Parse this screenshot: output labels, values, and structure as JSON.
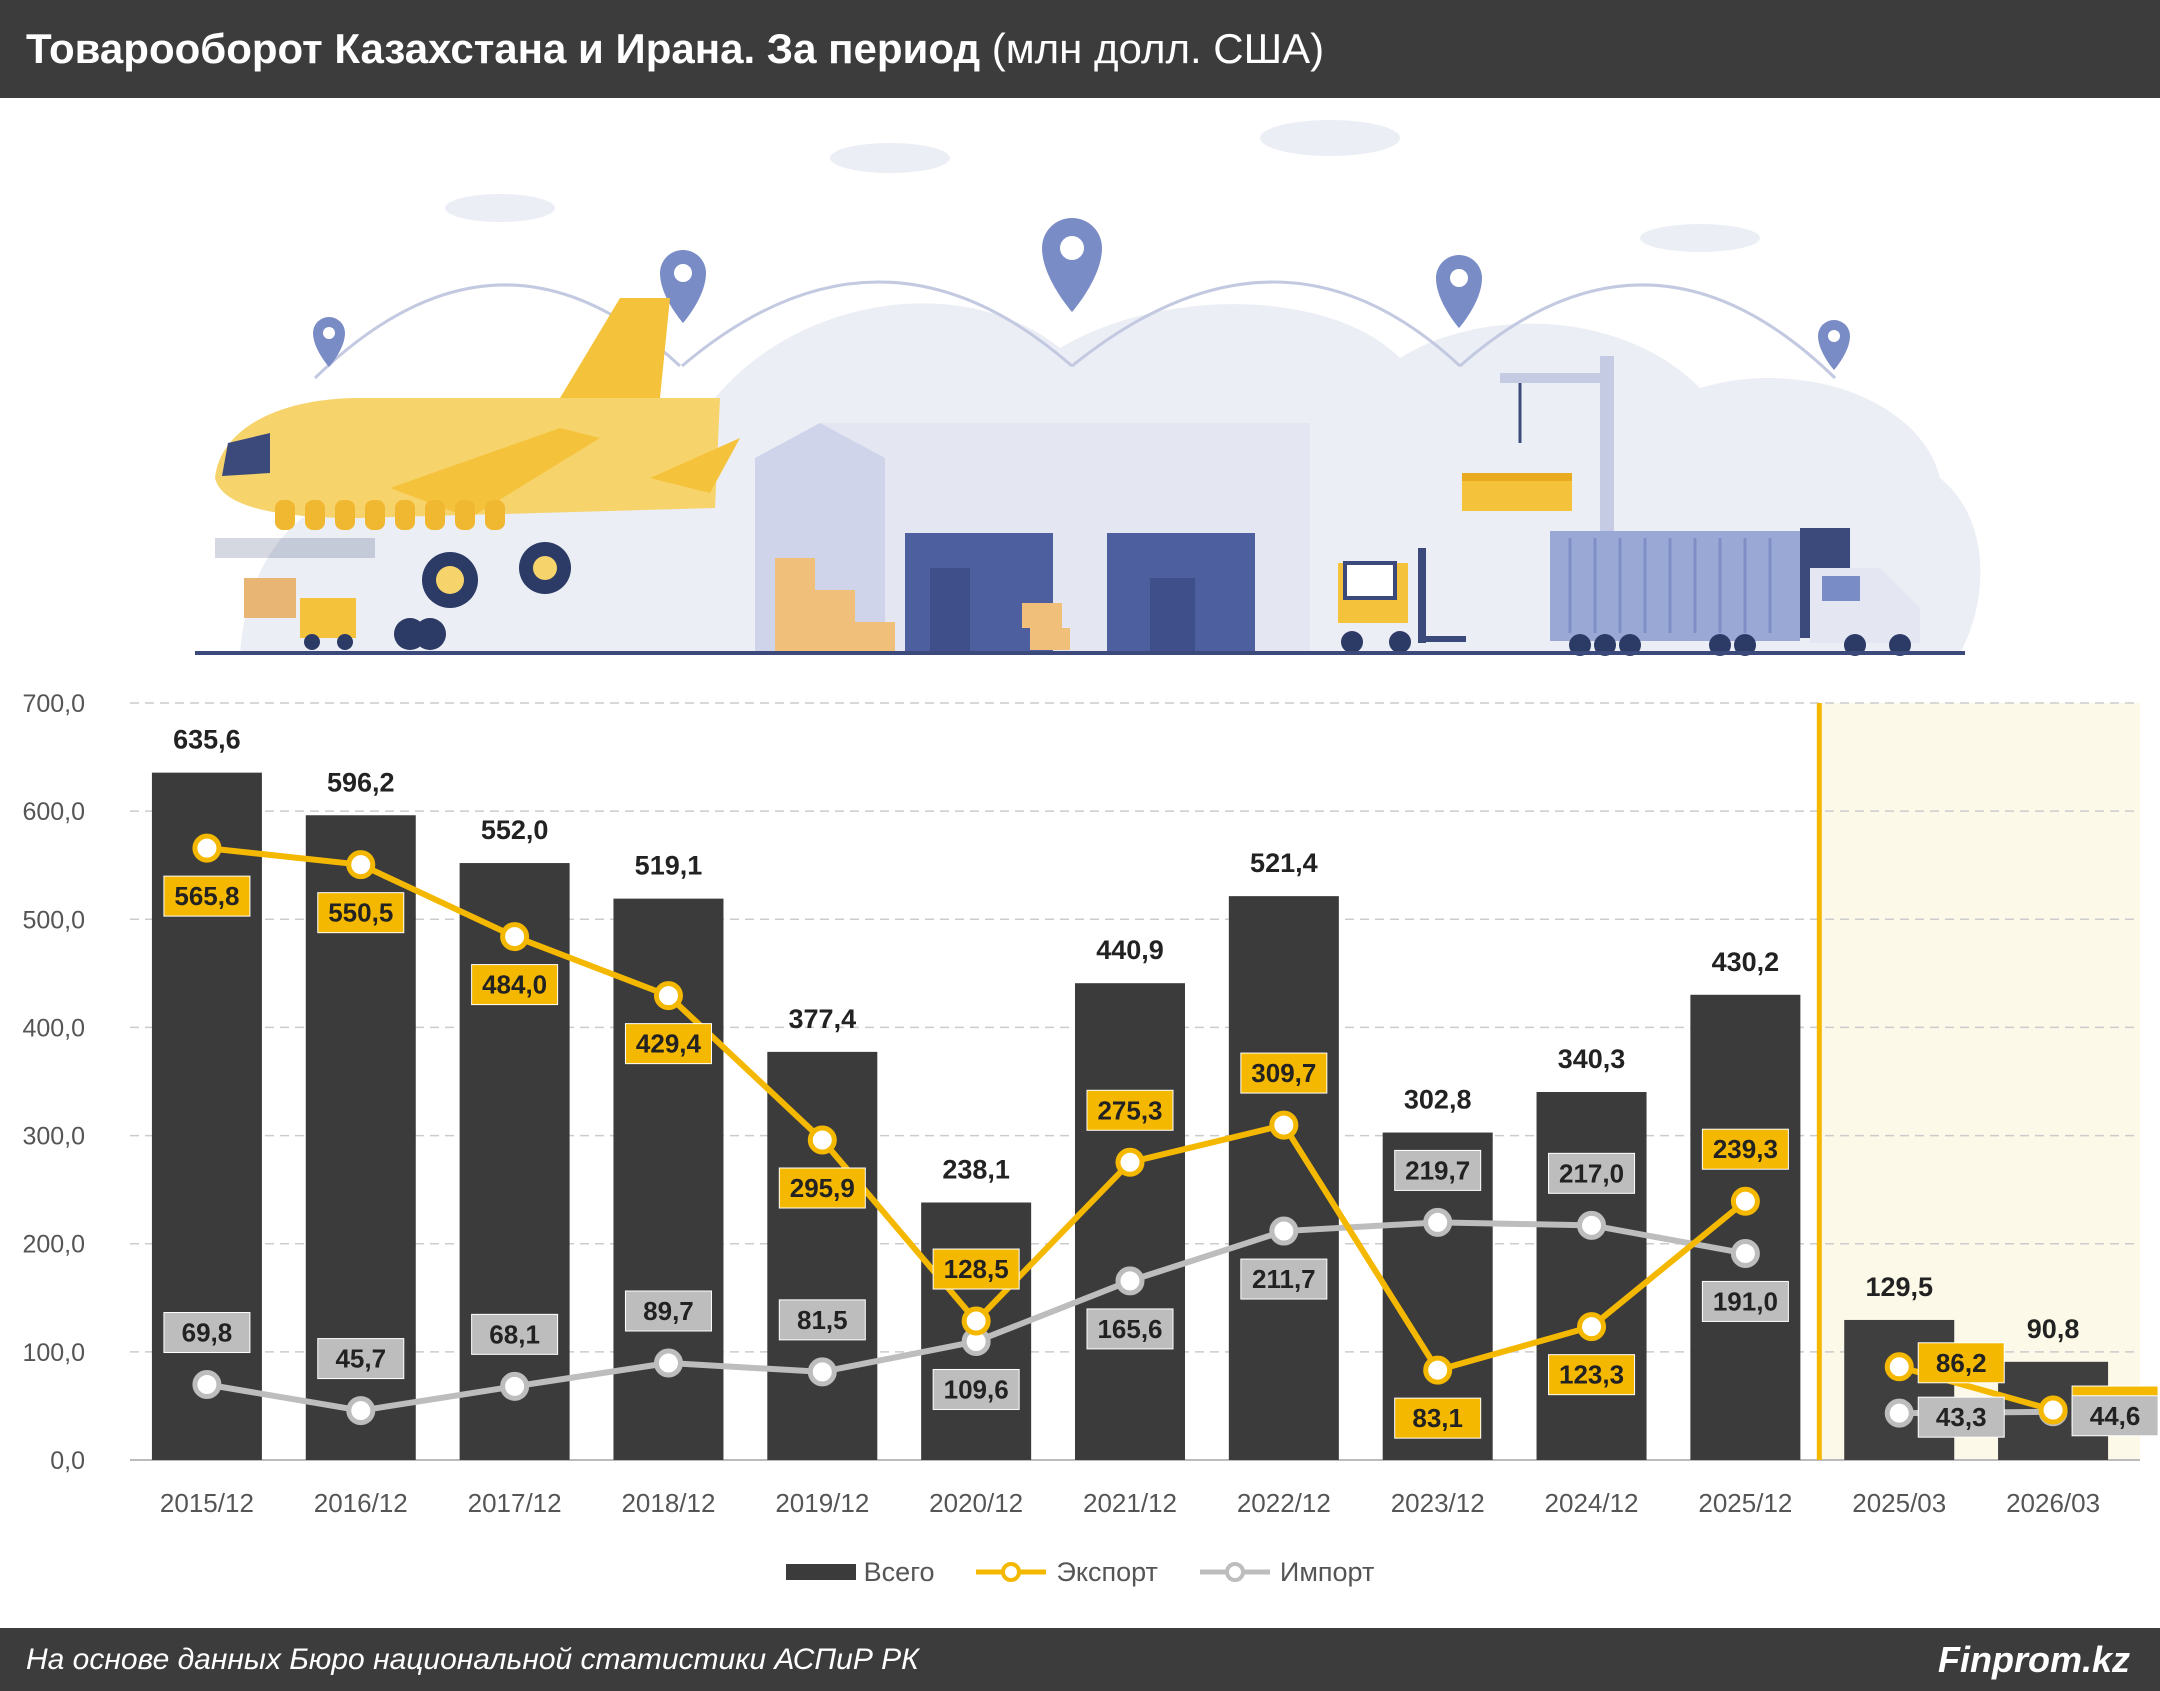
{
  "header": {
    "title_bold": "Товарооборот Казахстана и Ирана. За период",
    "title_unit": "(млн долл. США)"
  },
  "footer": {
    "source": "На основе данных Бюро национальной статистики АСПиР РК",
    "brand": "Finprom.kz"
  },
  "colors": {
    "total": "#3b3b3b",
    "export": "#f5b800",
    "import": "#bdbdbd",
    "highlight_bg": "#fcf9e8",
    "header_bg": "#3c3c3c"
  },
  "chart_data": {
    "type": "bar",
    "categories": [
      "2015/12",
      "2016/12",
      "2017/12",
      "2018/12",
      "2019/12",
      "2020/12",
      "2021/12",
      "2022/12",
      "2023/12",
      "2024/12",
      "2025/12",
      "2025/03",
      "2026/03"
    ],
    "series": [
      {
        "name": "Всего",
        "type": "bar",
        "values": [
          635.6,
          596.2,
          552.0,
          519.1,
          377.4,
          238.1,
          440.9,
          521.4,
          302.8,
          340.3,
          430.2,
          129.5,
          90.8
        ],
        "labels": [
          "635,6",
          "596,2",
          "552,0",
          "519,1",
          "377,4",
          "238,1",
          "440,9",
          "521,4",
          "302,8",
          "340,3",
          "430,2",
          "129,5",
          "90,8"
        ]
      },
      {
        "name": "Экспорт",
        "type": "line",
        "values": [
          565.8,
          550.5,
          484.0,
          429.4,
          295.9,
          128.5,
          275.3,
          309.7,
          83.1,
          123.3,
          239.3,
          86.2,
          46.2
        ],
        "labels": [
          "565,8",
          "550,5",
          "484,0",
          "429,4",
          "295,9",
          "128,5",
          "275,3",
          "309,7",
          "83,1",
          "123,3",
          "239,3",
          "86,2",
          "46,2"
        ]
      },
      {
        "name": "Импорт",
        "type": "line",
        "values": [
          69.8,
          45.7,
          68.1,
          89.7,
          81.5,
          109.6,
          165.6,
          211.7,
          219.7,
          217.0,
          191.0,
          43.3,
          44.6
        ],
        "labels": [
          "69,8",
          "45,7",
          "68,1",
          "89,7",
          "81,5",
          "109,6",
          "165,6",
          "211,7",
          "219,7",
          "217,0",
          "191,0",
          "43,3",
          "44,6"
        ]
      }
    ],
    "y_ticks": [
      "0,0",
      "100,0",
      "200,0",
      "300,0",
      "400,0",
      "500,0",
      "600,0",
      "700,0"
    ],
    "ylim": [
      0,
      700
    ],
    "highlighted_categories": [
      "2025/03",
      "2026/03"
    ],
    "grid": true,
    "legend_position": "bottom"
  }
}
